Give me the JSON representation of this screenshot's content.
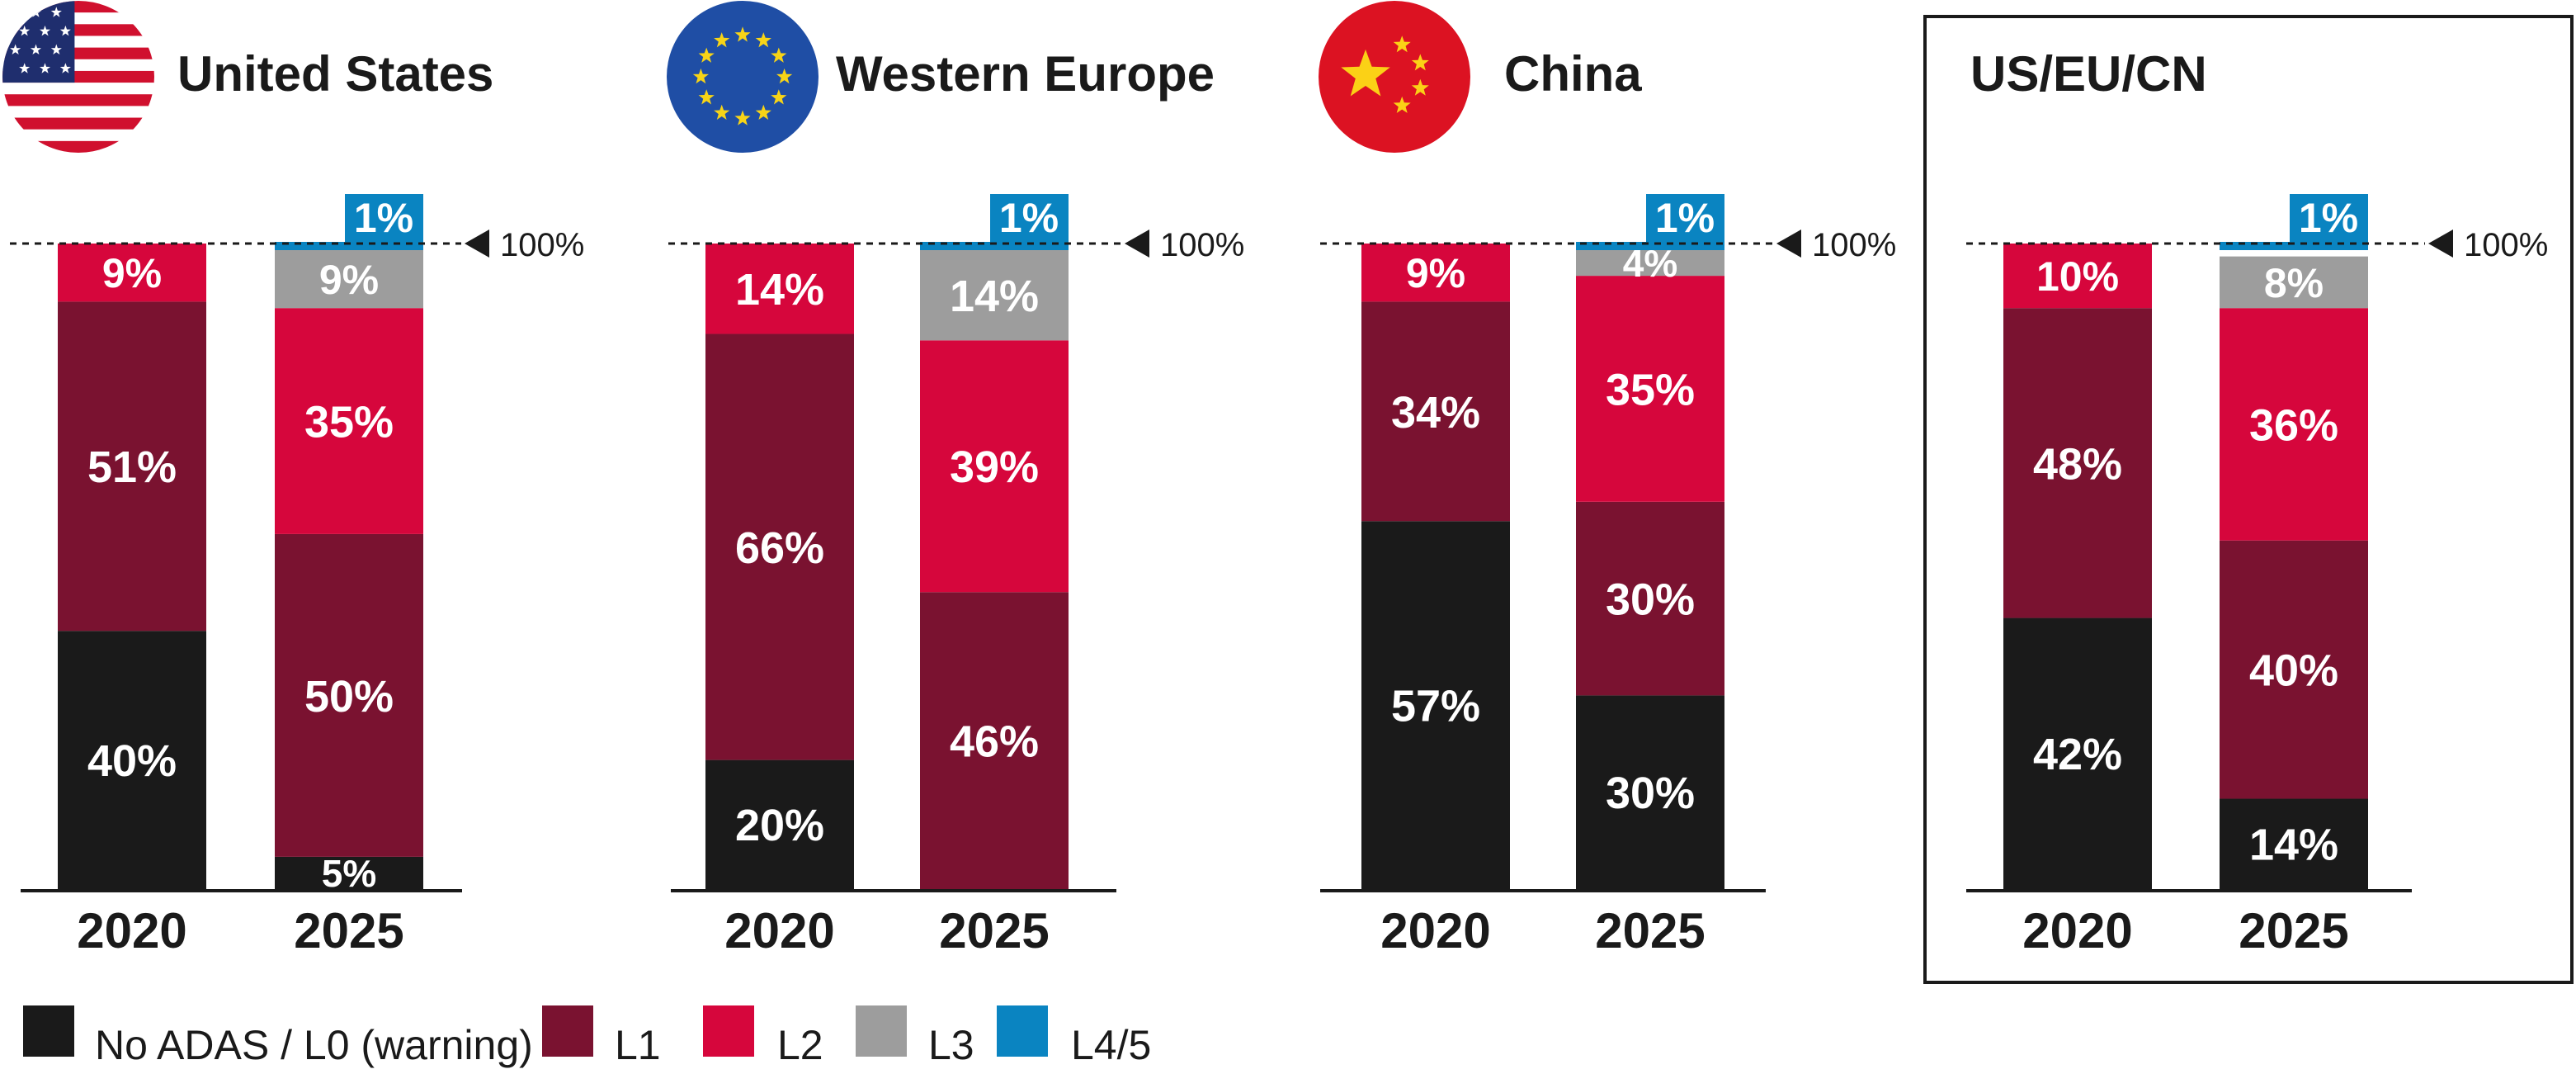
{
  "chart_data": [
    {
      "type": "bar",
      "stacked": true,
      "title": "United States",
      "flag": "us-flag",
      "categories": [
        "2020",
        "2025"
      ],
      "series": [
        {
          "name": "No ADAS / L0 (warning)",
          "values": [
            40,
            5
          ]
        },
        {
          "name": "L1",
          "values": [
            51,
            50
          ]
        },
        {
          "name": "L2",
          "values": [
            9,
            35
          ]
        },
        {
          "name": "L3",
          "values": [
            0,
            9
          ]
        },
        {
          "name": "L4/5",
          "values": [
            0,
            1
          ]
        }
      ],
      "reference_label": "100%",
      "ylim": [
        0,
        100
      ]
    },
    {
      "type": "bar",
      "stacked": true,
      "title": "Western Europe",
      "flag": "eu-flag",
      "categories": [
        "2020",
        "2025"
      ],
      "series": [
        {
          "name": "No ADAS / L0 (warning)",
          "values": [
            20,
            0
          ]
        },
        {
          "name": "L1",
          "values": [
            66,
            46
          ]
        },
        {
          "name": "L2",
          "values": [
            14,
            39
          ]
        },
        {
          "name": "L3",
          "values": [
            0,
            14
          ]
        },
        {
          "name": "L4/5",
          "values": [
            0,
            1
          ]
        }
      ],
      "reference_label": "100%",
      "ylim": [
        0,
        100
      ]
    },
    {
      "type": "bar",
      "stacked": true,
      "title": "China",
      "flag": "cn-flag",
      "categories": [
        "2020",
        "2025"
      ],
      "series": [
        {
          "name": "No ADAS / L0 (warning)",
          "values": [
            57,
            30
          ]
        },
        {
          "name": "L1",
          "values": [
            34,
            30
          ]
        },
        {
          "name": "L2",
          "values": [
            9,
            35
          ]
        },
        {
          "name": "L3",
          "values": [
            0,
            4
          ]
        },
        {
          "name": "L4/5",
          "values": [
            0,
            1
          ]
        }
      ],
      "reference_label": "100%",
      "ylim": [
        0,
        100
      ]
    },
    {
      "type": "bar",
      "stacked": true,
      "title": "US/EU/CN",
      "flag": "",
      "boxed": true,
      "categories": [
        "2020",
        "2025"
      ],
      "series": [
        {
          "name": "No ADAS / L0 (warning)",
          "values": [
            42,
            14
          ]
        },
        {
          "name": "L1",
          "values": [
            48,
            40
          ]
        },
        {
          "name": "L2",
          "values": [
            10,
            36
          ]
        },
        {
          "name": "L3",
          "values": [
            0,
            8
          ]
        },
        {
          "name": "L4/5",
          "values": [
            0,
            1
          ]
        }
      ],
      "reference_label": "100%",
      "ylim": [
        0,
        100
      ]
    }
  ],
  "legend": [
    {
      "label": "No ADAS / L0 (warning)",
      "color": "#1a1a1a"
    },
    {
      "label": "L1",
      "color": "#7a1230"
    },
    {
      "label": "L2",
      "color": "#d6063c"
    },
    {
      "label": "L3",
      "color": "#9d9d9d"
    },
    {
      "label": "L4/5",
      "color": "#0a84c1"
    }
  ],
  "colors": {
    "l0": "#1a1a1a",
    "l1": "#7a1230",
    "l2": "#d6063c",
    "l3": "#9d9d9d",
    "l45": "#0a84c1",
    "text": "#1a1a1a"
  }
}
